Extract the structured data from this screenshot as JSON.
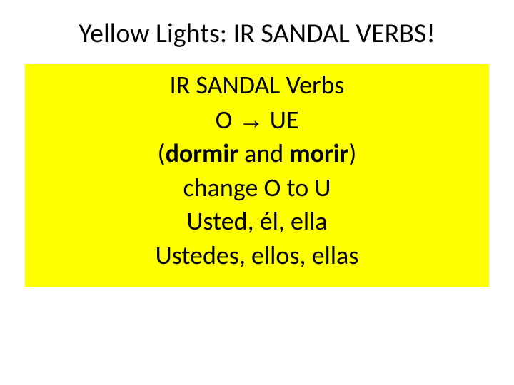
{
  "slide": {
    "title": "Yellow Lights: IR SANDAL VERBS!",
    "box": {
      "background_color": "#ffff00",
      "text_color": "#000000",
      "font_size": 36,
      "lines": {
        "line1": "IR SANDAL Verbs",
        "line2_before": "O ",
        "line2_arrow": "→",
        "line2_after": " UE",
        "line3_open": "(",
        "line3_verb1": "dormir",
        "line3_mid": " and ",
        "line3_verb2": "morir",
        "line3_close": ")",
        "line4": "change O to U",
        "line5": "Usted, él, ella",
        "line6": "Ustedes, ellos, ellas"
      }
    },
    "title_style": {
      "font_size": 38,
      "color": "#000000"
    }
  }
}
